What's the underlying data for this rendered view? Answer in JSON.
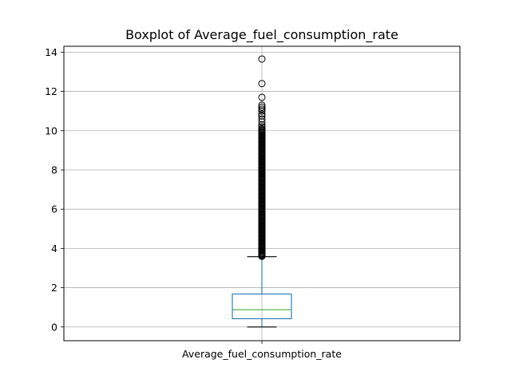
{
  "chart_data": {
    "type": "box",
    "title": "Boxplot of Average_fuel_consumption_rate",
    "xlabel": "",
    "ylabel": "",
    "categories": [
      "Average_fuel_consumption_rate"
    ],
    "ylim": [
      -0.7,
      14.3
    ],
    "yticks": [
      0,
      2,
      4,
      6,
      8,
      10,
      12,
      14
    ],
    "ytick_labels": [
      "0",
      "2",
      "4",
      "6",
      "8",
      "10",
      "12",
      "14"
    ],
    "grid": true,
    "series": [
      {
        "whisker_low": 0.0,
        "q1": 0.42,
        "median": 0.88,
        "q3": 1.68,
        "whisker_high": 3.58,
        "outliers": [
          3.6,
          3.62,
          3.65,
          3.68,
          3.72,
          3.75,
          3.8,
          3.85,
          3.9,
          3.95,
          4.0,
          4.05,
          4.1,
          4.15,
          4.2,
          4.25,
          4.3,
          4.35,
          4.4,
          4.45,
          4.5,
          4.55,
          4.6,
          4.65,
          4.7,
          4.75,
          4.8,
          4.85,
          4.9,
          4.95,
          5.0,
          5.05,
          5.1,
          5.15,
          5.2,
          5.25,
          5.3,
          5.35,
          5.4,
          5.45,
          5.5,
          5.55,
          5.6,
          5.65,
          5.7,
          5.75,
          5.8,
          5.85,
          5.9,
          5.95,
          6.0,
          6.05,
          6.1,
          6.15,
          6.2,
          6.25,
          6.3,
          6.35,
          6.4,
          6.45,
          6.5,
          6.55,
          6.6,
          6.65,
          6.7,
          6.75,
          6.8,
          6.85,
          6.9,
          6.95,
          7.0,
          7.05,
          7.1,
          7.15,
          7.2,
          7.25,
          7.3,
          7.35,
          7.4,
          7.45,
          7.5,
          7.55,
          7.6,
          7.65,
          7.7,
          7.75,
          7.8,
          7.85,
          7.9,
          7.95,
          8.0,
          8.05,
          8.1,
          8.15,
          8.2,
          8.25,
          8.3,
          8.35,
          8.4,
          8.45,
          8.5,
          8.55,
          8.6,
          8.65,
          8.7,
          8.75,
          8.8,
          8.85,
          8.9,
          8.95,
          9.0,
          9.05,
          9.1,
          9.15,
          9.2,
          9.25,
          9.3,
          9.35,
          9.4,
          9.45,
          9.5,
          9.55,
          9.6,
          9.65,
          9.7,
          9.75,
          9.8,
          9.85,
          9.9,
          9.95,
          10.0,
          10.05,
          10.1,
          10.2,
          10.3,
          10.45,
          10.6,
          10.75,
          10.85,
          11.0,
          11.1,
          11.2,
          11.3,
          11.7,
          12.4,
          13.65
        ]
      }
    ],
    "colors": {
      "box": "#1f77b4",
      "median": "#2ca02c",
      "whisker": "#1f77b4",
      "cap": "#000000",
      "outlier": "#000000",
      "grid": "#b0b0b0"
    }
  }
}
